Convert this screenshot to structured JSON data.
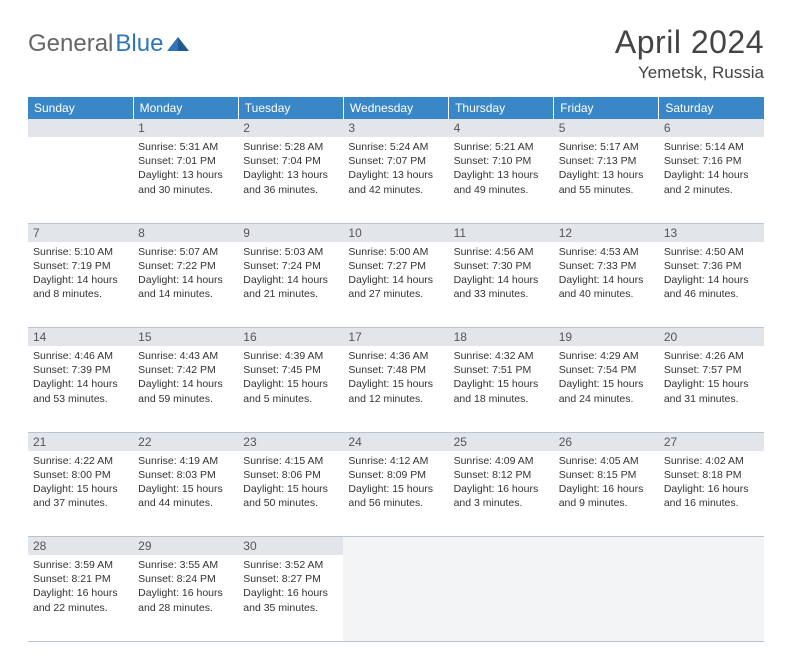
{
  "brand": {
    "general": "General",
    "blue": "Blue"
  },
  "title": "April 2024",
  "location": "Yemetsk, Russia",
  "colors": {
    "header_bg": "#3a87c8",
    "header_fg": "#ffffff",
    "daynum_bg": "#e2e6ea",
    "border": "#b8c4cf",
    "logo_blue": "#2f76b8",
    "text": "#333333"
  },
  "weekdays": [
    "Sunday",
    "Monday",
    "Tuesday",
    "Wednesday",
    "Thursday",
    "Friday",
    "Saturday"
  ],
  "weeks": [
    {
      "days": [
        {
          "num": "",
          "lines": []
        },
        {
          "num": "1",
          "lines": [
            "Sunrise: 5:31 AM",
            "Sunset: 7:01 PM",
            "Daylight: 13 hours",
            "and 30 minutes."
          ]
        },
        {
          "num": "2",
          "lines": [
            "Sunrise: 5:28 AM",
            "Sunset: 7:04 PM",
            "Daylight: 13 hours",
            "and 36 minutes."
          ]
        },
        {
          "num": "3",
          "lines": [
            "Sunrise: 5:24 AM",
            "Sunset: 7:07 PM",
            "Daylight: 13 hours",
            "and 42 minutes."
          ]
        },
        {
          "num": "4",
          "lines": [
            "Sunrise: 5:21 AM",
            "Sunset: 7:10 PM",
            "Daylight: 13 hours",
            "and 49 minutes."
          ]
        },
        {
          "num": "5",
          "lines": [
            "Sunrise: 5:17 AM",
            "Sunset: 7:13 PM",
            "Daylight: 13 hours",
            "and 55 minutes."
          ]
        },
        {
          "num": "6",
          "lines": [
            "Sunrise: 5:14 AM",
            "Sunset: 7:16 PM",
            "Daylight: 14 hours",
            "and 2 minutes."
          ]
        }
      ]
    },
    {
      "days": [
        {
          "num": "7",
          "lines": [
            "Sunrise: 5:10 AM",
            "Sunset: 7:19 PM",
            "Daylight: 14 hours",
            "and 8 minutes."
          ]
        },
        {
          "num": "8",
          "lines": [
            "Sunrise: 5:07 AM",
            "Sunset: 7:22 PM",
            "Daylight: 14 hours",
            "and 14 minutes."
          ]
        },
        {
          "num": "9",
          "lines": [
            "Sunrise: 5:03 AM",
            "Sunset: 7:24 PM",
            "Daylight: 14 hours",
            "and 21 minutes."
          ]
        },
        {
          "num": "10",
          "lines": [
            "Sunrise: 5:00 AM",
            "Sunset: 7:27 PM",
            "Daylight: 14 hours",
            "and 27 minutes."
          ]
        },
        {
          "num": "11",
          "lines": [
            "Sunrise: 4:56 AM",
            "Sunset: 7:30 PM",
            "Daylight: 14 hours",
            "and 33 minutes."
          ]
        },
        {
          "num": "12",
          "lines": [
            "Sunrise: 4:53 AM",
            "Sunset: 7:33 PM",
            "Daylight: 14 hours",
            "and 40 minutes."
          ]
        },
        {
          "num": "13",
          "lines": [
            "Sunrise: 4:50 AM",
            "Sunset: 7:36 PM",
            "Daylight: 14 hours",
            "and 46 minutes."
          ]
        }
      ]
    },
    {
      "days": [
        {
          "num": "14",
          "lines": [
            "Sunrise: 4:46 AM",
            "Sunset: 7:39 PM",
            "Daylight: 14 hours",
            "and 53 minutes."
          ]
        },
        {
          "num": "15",
          "lines": [
            "Sunrise: 4:43 AM",
            "Sunset: 7:42 PM",
            "Daylight: 14 hours",
            "and 59 minutes."
          ]
        },
        {
          "num": "16",
          "lines": [
            "Sunrise: 4:39 AM",
            "Sunset: 7:45 PM",
            "Daylight: 15 hours",
            "and 5 minutes."
          ]
        },
        {
          "num": "17",
          "lines": [
            "Sunrise: 4:36 AM",
            "Sunset: 7:48 PM",
            "Daylight: 15 hours",
            "and 12 minutes."
          ]
        },
        {
          "num": "18",
          "lines": [
            "Sunrise: 4:32 AM",
            "Sunset: 7:51 PM",
            "Daylight: 15 hours",
            "and 18 minutes."
          ]
        },
        {
          "num": "19",
          "lines": [
            "Sunrise: 4:29 AM",
            "Sunset: 7:54 PM",
            "Daylight: 15 hours",
            "and 24 minutes."
          ]
        },
        {
          "num": "20",
          "lines": [
            "Sunrise: 4:26 AM",
            "Sunset: 7:57 PM",
            "Daylight: 15 hours",
            "and 31 minutes."
          ]
        }
      ]
    },
    {
      "days": [
        {
          "num": "21",
          "lines": [
            "Sunrise: 4:22 AM",
            "Sunset: 8:00 PM",
            "Daylight: 15 hours",
            "and 37 minutes."
          ]
        },
        {
          "num": "22",
          "lines": [
            "Sunrise: 4:19 AM",
            "Sunset: 8:03 PM",
            "Daylight: 15 hours",
            "and 44 minutes."
          ]
        },
        {
          "num": "23",
          "lines": [
            "Sunrise: 4:15 AM",
            "Sunset: 8:06 PM",
            "Daylight: 15 hours",
            "and 50 minutes."
          ]
        },
        {
          "num": "24",
          "lines": [
            "Sunrise: 4:12 AM",
            "Sunset: 8:09 PM",
            "Daylight: 15 hours",
            "and 56 minutes."
          ]
        },
        {
          "num": "25",
          "lines": [
            "Sunrise: 4:09 AM",
            "Sunset: 8:12 PM",
            "Daylight: 16 hours",
            "and 3 minutes."
          ]
        },
        {
          "num": "26",
          "lines": [
            "Sunrise: 4:05 AM",
            "Sunset: 8:15 PM",
            "Daylight: 16 hours",
            "and 9 minutes."
          ]
        },
        {
          "num": "27",
          "lines": [
            "Sunrise: 4:02 AM",
            "Sunset: 8:18 PM",
            "Daylight: 16 hours",
            "and 16 minutes."
          ]
        }
      ]
    },
    {
      "days": [
        {
          "num": "28",
          "lines": [
            "Sunrise: 3:59 AM",
            "Sunset: 8:21 PM",
            "Daylight: 16 hours",
            "and 22 minutes."
          ]
        },
        {
          "num": "29",
          "lines": [
            "Sunrise: 3:55 AM",
            "Sunset: 8:24 PM",
            "Daylight: 16 hours",
            "and 28 minutes."
          ]
        },
        {
          "num": "30",
          "lines": [
            "Sunrise: 3:52 AM",
            "Sunset: 8:27 PM",
            "Daylight: 16 hours",
            "and 35 minutes."
          ]
        },
        {
          "num": "",
          "lines": [],
          "trailing": true
        },
        {
          "num": "",
          "lines": [],
          "trailing": true
        },
        {
          "num": "",
          "lines": [],
          "trailing": true
        },
        {
          "num": "",
          "lines": [],
          "trailing": true
        }
      ]
    }
  ]
}
